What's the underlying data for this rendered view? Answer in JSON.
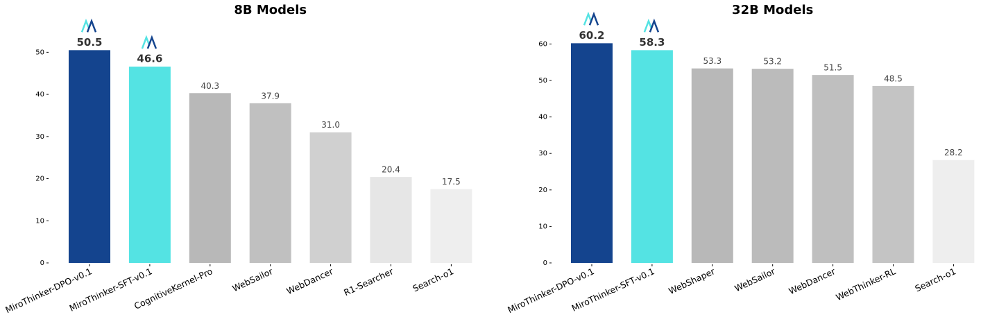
{
  "chart_data": [
    {
      "type": "bar",
      "title": "8B Models",
      "categories": [
        "MiroThinker-DPO-v0.1",
        "MiroThinker-SFT-v0.1",
        "CognitiveKernel-Pro",
        "WebSailor",
        "WebDancer",
        "R1-Searcher",
        "Search-o1"
      ],
      "values": [
        50.5,
        46.6,
        40.3,
        37.9,
        31.0,
        20.4,
        17.5
      ],
      "value_labels": [
        "50.5",
        "46.6",
        "40.3",
        "37.9",
        "31.0",
        "20.4",
        "17.5"
      ],
      "colors": [
        "#14448e",
        "#54e3e3",
        "#b8b8b8",
        "#c0c0c0",
        "#d0d0d0",
        "#e6e6e6",
        "#eeeeee"
      ],
      "ylim": [
        0,
        55
      ],
      "yticks": [
        0,
        10,
        20,
        30,
        40,
        50
      ]
    },
    {
      "type": "bar",
      "title": "32B Models",
      "categories": [
        "MiroThinker-DPO-v0.1",
        "MiroThinker-SFT-v0.1",
        "WebShaper",
        "WebSailor",
        "WebDancer",
        "WebThinker-RL",
        "Search-o1"
      ],
      "values": [
        60.2,
        58.3,
        53.3,
        53.2,
        51.5,
        48.5,
        28.2
      ],
      "value_labels": [
        "60.2",
        "58.3",
        "53.3",
        "53.2",
        "51.5",
        "48.5",
        "28.2"
      ],
      "colors": [
        "#14448e",
        "#54e3e3",
        "#b8b8b8",
        "#bbbbbb",
        "#bfbfbf",
        "#c4c4c4",
        "#eeeeee"
      ],
      "ylim": [
        0,
        63.5
      ],
      "yticks": [
        0,
        10,
        20,
        30,
        40,
        50,
        60
      ]
    }
  ]
}
